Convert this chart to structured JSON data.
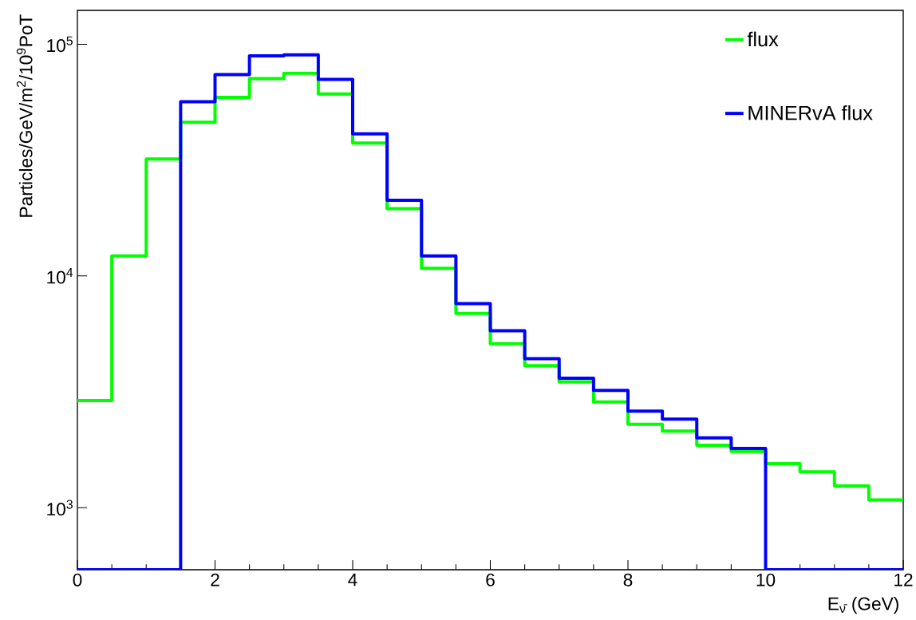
{
  "chart_data": {
    "type": "histogram",
    "xlabel": "E$_{ν̄}$ (GeV)",
    "ylabel": "Particles/GeV/m$^{2}$/10$^{9}$PoT",
    "bins": [
      0,
      0.5,
      1,
      1.5,
      2,
      2.5,
      3,
      3.5,
      4,
      4.5,
      5,
      5.5,
      6,
      6.5,
      7,
      7.5,
      8,
      8.5,
      9,
      9.5,
      10,
      10.5,
      11,
      11.5,
      12
    ],
    "series": [
      {
        "name": "flux",
        "color": "#00ff00",
        "values": [
          2900,
          12200,
          32000,
          46000,
          59000,
          71000,
          75000,
          61000,
          37500,
          19500,
          10800,
          6900,
          5100,
          4100,
          3490,
          2860,
          2290,
          2140,
          1860,
          1750,
          1550,
          1430,
          1240,
          1080
        ]
      },
      {
        "name": "MINERvA flux",
        "color": "#0000ff",
        "values": [
          null,
          null,
          null,
          56500,
          74000,
          89000,
          90000,
          70500,
          41000,
          21200,
          12200,
          7600,
          5800,
          4400,
          3620,
          3210,
          2610,
          2410,
          2000,
          1800,
          null,
          null,
          null,
          null
        ]
      }
    ],
    "xlim": [
      0,
      12
    ],
    "xticks": [
      0,
      2,
      4,
      6,
      8,
      10,
      12
    ],
    "ylim": [
      540,
      140000
    ],
    "log": true,
    "yticks": [
      {
        "value": 1000,
        "label": "10$^{3}$"
      },
      {
        "value": 10000,
        "label": "10$^{4}$"
      },
      {
        "value": 100000,
        "label": "10$^{5}$"
      }
    ],
    "legend": "top right",
    "grid": false
  }
}
